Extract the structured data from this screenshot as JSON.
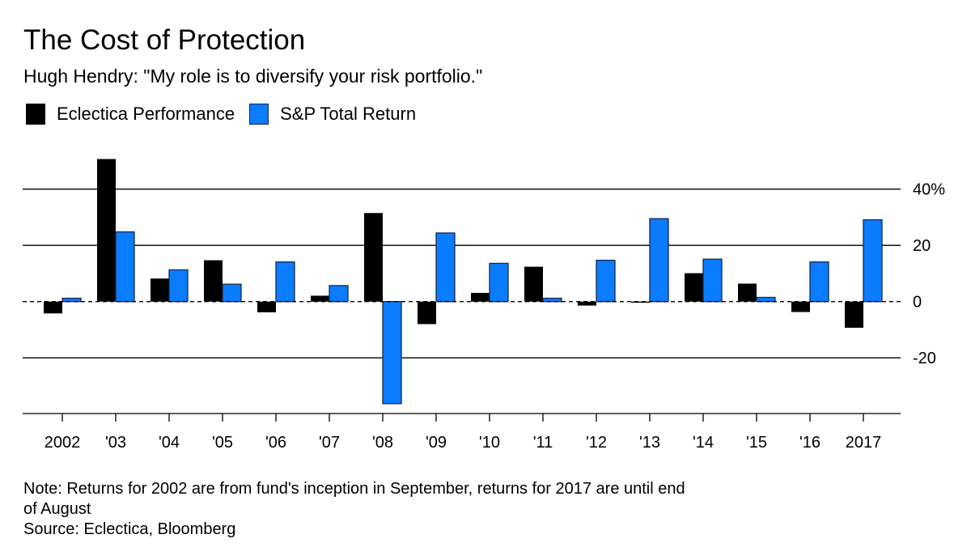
{
  "chart_data": {
    "type": "bar",
    "title": "The Cost of Protection",
    "subtitle": "Hugh Hendry: \"My role is to diversify your risk portfolio.\"",
    "xlabel": "",
    "ylabel": "",
    "categories": [
      "2002",
      "'03",
      "'04",
      "'05",
      "'06",
      "'07",
      "'08",
      "'09",
      "'10",
      "'11",
      "'12",
      "'13",
      "'14",
      "'15",
      "'16",
      "2017"
    ],
    "series": [
      {
        "name": "Eclectica Performance",
        "color": "#000000",
        "values": [
          -4.2,
          50.7,
          8.2,
          14.7,
          -3.8,
          2.1,
          31.5,
          -8.0,
          3.1,
          12.4,
          -1.4,
          -0.4,
          10.1,
          6.4,
          -3.7,
          -9.3
        ]
      },
      {
        "name": "S&P Total Return",
        "color": "#0A7CFF",
        "values": [
          1.2,
          24.8,
          11.3,
          6.2,
          14.1,
          5.7,
          -36.3,
          24.4,
          13.6,
          1.2,
          14.7,
          29.5,
          15.1,
          1.5,
          14.1,
          29.1
        ]
      }
    ],
    "ylim": [
      -40,
      55
    ],
    "yticks": [
      40,
      20,
      0,
      -20
    ],
    "ytick_labels": [
      "40%",
      "20",
      "0",
      "-20"
    ],
    "grid": true,
    "zero_line": "dashed",
    "y_axis_side": "right",
    "legend_position": "top-left",
    "notes": [
      "Note: Returns for 2002 are from fund's inception in September, returns for 2017 are until end",
      "of August",
      "Source: Eclectica, Bloomberg"
    ]
  }
}
